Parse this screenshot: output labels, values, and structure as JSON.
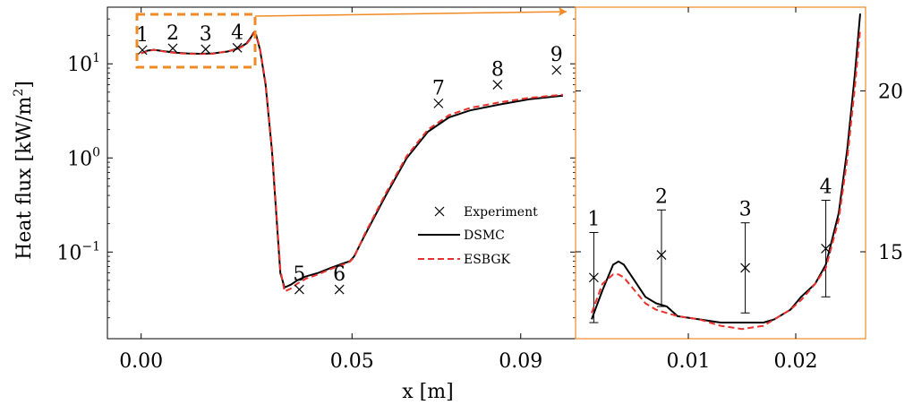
{
  "chart_data": [
    {
      "type": "line",
      "panel": "main",
      "xlabel": "x [m]",
      "ylabel": "Heat flux [kW/m²]",
      "ylabel_main": "Heat flux [kW/m",
      "ylabel_sup": "2",
      "ylabel_end": "]",
      "yscale": "log",
      "xlim": [
        -0.008,
        0.103
      ],
      "ylim": [
        0.012,
        40
      ],
      "xticks": [
        0.0,
        0.05,
        0.09
      ],
      "xtick_labels": [
        "0.00",
        "0.05",
        "0.09"
      ],
      "yticks": [
        0.1,
        1,
        10
      ],
      "ytick_label_parts": [
        {
          "base": "10",
          "exp": "−1"
        },
        {
          "base": "10",
          "exp": "0"
        },
        {
          "base": "10",
          "exp": "1"
        }
      ],
      "legend_placement": "center-right",
      "grid": false,
      "series": [
        {
          "name": "Experiment",
          "marker": "x",
          "color": "#000000",
          "points": [
            {
              "label": "1",
              "x": 0.0003,
              "y": 14.0
            },
            {
              "label": "2",
              "x": 0.0075,
              "y": 14.6
            },
            {
              "label": "3",
              "x": 0.0153,
              "y": 14.3
            },
            {
              "label": "4",
              "x": 0.0228,
              "y": 14.8
            },
            {
              "label": "5",
              "x": 0.0375,
              "y": 0.04
            },
            {
              "label": "6",
              "x": 0.047,
              "y": 0.04
            },
            {
              "label": "7",
              "x": 0.0705,
              "y": 3.8
            },
            {
              "label": "8",
              "x": 0.0845,
              "y": 6.0
            },
            {
              "label": "9",
              "x": 0.0985,
              "y": 8.6
            }
          ]
        },
        {
          "name": "DSMC",
          "style": "solid",
          "color": "#000000",
          "x": [
            0.0,
            0.0015,
            0.003,
            0.006,
            0.0085,
            0.011,
            0.014,
            0.017,
            0.0205,
            0.023,
            0.025,
            0.026,
            0.0267,
            0.0273,
            0.0282,
            0.0295,
            0.031,
            0.0322,
            0.033,
            0.034,
            0.0355,
            0.037,
            0.039,
            0.042,
            0.045,
            0.048,
            0.0495,
            0.0505,
            0.053,
            0.058,
            0.063,
            0.068,
            0.073,
            0.078,
            0.085,
            0.092,
            0.1
          ],
          "y": [
            12.9,
            13.8,
            14.1,
            13.5,
            13.1,
            12.9,
            12.8,
            12.9,
            13.5,
            14.6,
            16.5,
            19.0,
            21.5,
            20.0,
            14.0,
            6.0,
            1.2,
            0.2,
            0.06,
            0.042,
            0.045,
            0.05,
            0.055,
            0.06,
            0.068,
            0.076,
            0.08,
            0.09,
            0.15,
            0.4,
            1.0,
            1.9,
            2.7,
            3.2,
            3.7,
            4.2,
            4.6
          ]
        },
        {
          "name": "ESBGK",
          "style": "dashed",
          "color": "#e8322d",
          "x": [
            0.0,
            0.0015,
            0.003,
            0.006,
            0.0085,
            0.011,
            0.014,
            0.017,
            0.0205,
            0.023,
            0.025,
            0.026,
            0.0267,
            0.0273,
            0.0282,
            0.0295,
            0.031,
            0.0322,
            0.033,
            0.034,
            0.0355,
            0.037,
            0.039,
            0.042,
            0.045,
            0.048,
            0.0495,
            0.0505,
            0.053,
            0.058,
            0.063,
            0.068,
            0.073,
            0.078,
            0.085,
            0.092,
            0.1
          ],
          "y": [
            12.9,
            13.6,
            14.1,
            13.4,
            13.0,
            12.8,
            12.7,
            12.8,
            13.6,
            14.4,
            16.2,
            18.6,
            21.2,
            20.3,
            14.4,
            6.3,
            1.3,
            0.22,
            0.065,
            0.038,
            0.041,
            0.046,
            0.052,
            0.058,
            0.066,
            0.074,
            0.079,
            0.088,
            0.155,
            0.42,
            1.05,
            2.0,
            2.85,
            3.4,
            3.9,
            4.35,
            4.7
          ]
        }
      ]
    },
    {
      "type": "line",
      "panel": "zoom",
      "xlim": [
        -0.0005,
        0.0265
      ],
      "ylim": [
        12.3,
        22.6
      ],
      "xticks": [
        0.01,
        0.02
      ],
      "xtick_labels": [
        "0.01",
        "0.02"
      ],
      "yticks": [
        15,
        20
      ],
      "ytick_labels": [
        "15",
        "20"
      ],
      "yaxis_side": "right",
      "grid": false,
      "series": [
        {
          "name": "Experiment",
          "marker": "x",
          "errorbars": true,
          "points": [
            {
              "label": "1",
              "x": 0.0012,
              "y": 14.2,
              "lo": 12.8,
              "hi": 15.6
            },
            {
              "label": "2",
              "x": 0.0075,
              "y": 14.9,
              "lo": 13.3,
              "hi": 16.3
            },
            {
              "label": "3",
              "x": 0.0153,
              "y": 14.5,
              "lo": 13.1,
              "hi": 15.9
            },
            {
              "label": "4",
              "x": 0.0228,
              "y": 15.1,
              "lo": 13.6,
              "hi": 16.6
            }
          ]
        },
        {
          "name": "DSMC",
          "style": "solid",
          "color": "#000000",
          "x": [
            0.001,
            0.002,
            0.003,
            0.0035,
            0.004,
            0.005,
            0.006,
            0.007,
            0.008,
            0.009,
            0.011,
            0.013,
            0.015,
            0.017,
            0.018,
            0.0195,
            0.0205,
            0.0218,
            0.0228,
            0.024,
            0.0248,
            0.0255,
            0.026
          ],
          "y": [
            12.9,
            13.8,
            14.6,
            14.7,
            14.6,
            14.1,
            13.6,
            13.4,
            13.3,
            13.0,
            12.9,
            12.8,
            12.8,
            12.8,
            12.9,
            13.2,
            13.6,
            14.0,
            14.6,
            16.2,
            18.2,
            20.5,
            22.4
          ]
        },
        {
          "name": "ESBGK",
          "style": "dashed",
          "color": "#e8322d",
          "x": [
            0.001,
            0.002,
            0.003,
            0.0035,
            0.004,
            0.005,
            0.006,
            0.007,
            0.008,
            0.009,
            0.011,
            0.013,
            0.015,
            0.017,
            0.018,
            0.0195,
            0.0205,
            0.0218,
            0.0228,
            0.024,
            0.0248,
            0.0255,
            0.026
          ],
          "y": [
            13.1,
            14.0,
            14.3,
            14.3,
            14.2,
            13.8,
            13.4,
            13.2,
            13.1,
            13.0,
            12.9,
            12.7,
            12.6,
            12.7,
            12.9,
            13.2,
            13.5,
            14.0,
            14.5,
            16.0,
            17.9,
            20.1,
            21.9
          ]
        }
      ]
    }
  ],
  "legend": {
    "experiment": "Experiment",
    "dsmc": "DSMC",
    "esbgk": "ESBGK"
  },
  "colors": {
    "zoom_box": "#f08a24",
    "esbgk": "#e8322d",
    "dsmc": "#000000"
  }
}
